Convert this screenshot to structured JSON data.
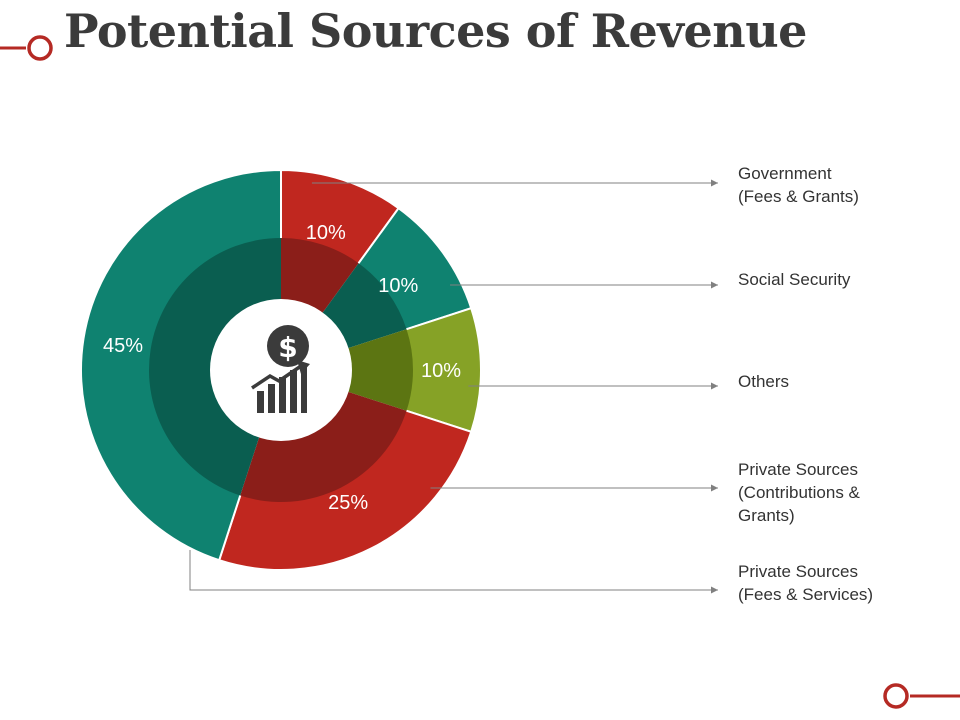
{
  "title": "Potential Sources of Revenue",
  "center_icon": "dollar-growth-chart-icon",
  "colors": {
    "title": "#3b3b3b",
    "red": "#c0271f",
    "green": "#0f8270",
    "olive": "#86a226",
    "inner_red": "#8b1e19",
    "inner_green": "#0a5e50",
    "inner_olive": "#5c7512",
    "icon": "#3b3b3b",
    "leader": "#808080",
    "accent": "#b52a24"
  },
  "chart_data": {
    "type": "pie",
    "title": "Potential Sources of Revenue",
    "series": [
      {
        "name": "Government (Fees & Grants)",
        "value": 10,
        "label": "10%",
        "color": "#c0271f",
        "inner": "#8b1e19",
        "legend_lines": [
          "Government",
          "(Fees & Grants)"
        ]
      },
      {
        "name": "Social Security",
        "value": 10,
        "label": "10%",
        "color": "#0f8270",
        "inner": "#0a5e50",
        "legend_lines": [
          "Social Security"
        ]
      },
      {
        "name": "Others",
        "value": 10,
        "label": "10%",
        "color": "#86a226",
        "inner": "#5c7512",
        "legend_lines": [
          "Others"
        ]
      },
      {
        "name": "Private Sources (Contributions & Grants)",
        "value": 25,
        "label": "25%",
        "color": "#c0271f",
        "inner": "#8b1e19",
        "legend_lines": [
          "Private Sources",
          "(Contributions &",
          "Grants)"
        ]
      },
      {
        "name": "Private Sources (Fees & Services)",
        "value": 45,
        "label": "45%",
        "color": "#0f8270",
        "inner": "#0a5e50",
        "legend_lines": [
          "Private Sources",
          "(Fees & Services)"
        ]
      }
    ]
  }
}
